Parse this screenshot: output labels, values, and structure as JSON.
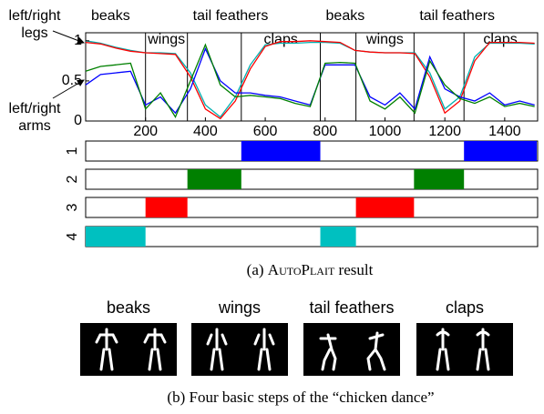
{
  "chart_data": {
    "type": "line",
    "x": [
      0,
      50,
      100,
      150,
      200,
      250,
      300,
      350,
      400,
      450,
      500,
      550,
      600,
      650,
      700,
      750,
      800,
      850,
      900,
      950,
      1000,
      1050,
      1100,
      1150,
      1200,
      1250,
      1300,
      1350,
      1400,
      1450,
      1500
    ],
    "series": [
      {
        "color": "#00b0b0",
        "values": [
          1.0,
          0.97,
          0.92,
          0.88,
          0.85,
          0.85,
          0.84,
          0.6,
          0.2,
          0.05,
          0.3,
          0.7,
          0.95,
          0.97,
          0.97,
          0.98,
          0.98,
          0.97,
          0.88,
          0.86,
          0.85,
          0.85,
          0.85,
          0.6,
          0.15,
          0.3,
          0.8,
          0.97,
          0.97,
          0.97,
          0.96
        ]
      },
      {
        "color": "#ff0000",
        "values": [
          0.98,
          0.96,
          0.91,
          0.87,
          0.85,
          0.84,
          0.83,
          0.55,
          0.15,
          0.03,
          0.25,
          0.65,
          0.93,
          0.99,
          0.99,
          1.0,
          0.99,
          0.98,
          0.88,
          0.86,
          0.85,
          0.85,
          0.84,
          0.55,
          0.1,
          0.25,
          0.75,
          0.98,
          0.98,
          0.98,
          0.97
        ]
      },
      {
        "color": "#0000ff",
        "values": [
          0.45,
          0.58,
          0.6,
          0.62,
          0.2,
          0.3,
          0.1,
          0.4,
          0.9,
          0.5,
          0.35,
          0.35,
          0.32,
          0.3,
          0.25,
          0.2,
          0.7,
          0.7,
          0.7,
          0.3,
          0.2,
          0.35,
          0.15,
          0.8,
          0.4,
          0.3,
          0.25,
          0.35,
          0.2,
          0.25,
          0.2
        ]
      },
      {
        "color": "#008000",
        "values": [
          0.62,
          0.68,
          0.7,
          0.72,
          0.15,
          0.35,
          0.05,
          0.5,
          0.95,
          0.45,
          0.3,
          0.32,
          0.3,
          0.28,
          0.22,
          0.18,
          0.72,
          0.73,
          0.72,
          0.25,
          0.15,
          0.3,
          0.1,
          0.75,
          0.45,
          0.28,
          0.22,
          0.3,
          0.18,
          0.22,
          0.18
        ]
      }
    ],
    "xlim": [
      0,
      1510
    ],
    "xticks": [
      200,
      400,
      600,
      800,
      1000,
      1200,
      1400
    ],
    "ylim": [
      0,
      1.1
    ],
    "yticks": [
      0,
      0.5,
      1
    ],
    "annotations": [
      "left/right legs",
      "left/right arms"
    ],
    "regimes": [
      {
        "name": "1",
        "color": "#0000ff"
      },
      {
        "name": "2",
        "color": "#008000"
      },
      {
        "name": "3",
        "color": "#ff0000"
      },
      {
        "name": "4",
        "color": "#00c0c0"
      }
    ],
    "segments": [
      {
        "label": "beaks",
        "start": 0,
        "end": 200,
        "regime": 3
      },
      {
        "label": "wings",
        "start": 200,
        "end": 340,
        "regime": 2
      },
      {
        "label": "tail feathers",
        "start": 340,
        "end": 520,
        "regime": 1
      },
      {
        "label": "claps",
        "start": 520,
        "end": 784,
        "regime": 0
      },
      {
        "label": "beaks",
        "start": 784,
        "end": 903,
        "regime": 3
      },
      {
        "label": "wings",
        "start": 903,
        "end": 1097,
        "regime": 2
      },
      {
        "label": "tail feathers",
        "start": 1097,
        "end": 1264,
        "regime": 1
      },
      {
        "label": "claps",
        "start": 1264,
        "end": 1507,
        "regime": 0
      }
    ]
  },
  "caption_a": {
    "prefix": "(a)",
    "name": "AutoPlait",
    "rest": "result"
  },
  "steps": [
    "beaks",
    "wings",
    "tail feathers",
    "claps"
  ],
  "caption_b": "(b) Four basic steps of the “chicken dance”"
}
